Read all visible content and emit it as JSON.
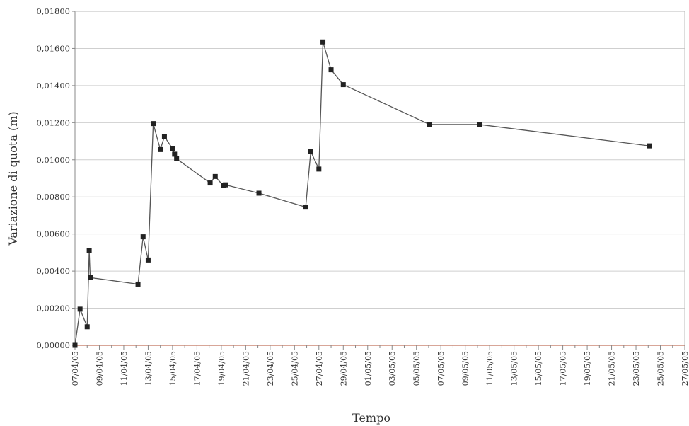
{
  "chart_data": {
    "type": "line",
    "title": "",
    "xlabel": "Tempo",
    "ylabel": "Variazione di quota (m)",
    "xlim": [
      "07/04/05",
      "27/05/05"
    ],
    "ylim": [
      0,
      0.018
    ],
    "grid": "horizontal",
    "legend": "none",
    "y_ticks": [
      "0,00000",
      "0,00200",
      "0,00400",
      "0,00600",
      "0,00800",
      "0,01000",
      "0,01200",
      "0,01400",
      "0,01600",
      "0,01800"
    ],
    "x_ticks": [
      "07/04/05",
      "09/04/05",
      "11/04/05",
      "13/04/05",
      "15/04/05",
      "17/04/05",
      "19/04/05",
      "21/04/05",
      "23/04/05",
      "25/04/05",
      "27/04/05",
      "29/04/05",
      "01/05/05",
      "03/05/05",
      "05/05/05",
      "07/05/05",
      "09/05/05",
      "11/05/05",
      "13/05/05",
      "15/05/05",
      "17/05/05",
      "19/05/05",
      "21/05/05",
      "23/05/05",
      "25/05/05",
      "27/05/05"
    ],
    "series": [
      {
        "color": "#555555",
        "marker": "square",
        "points": [
          {
            "x": "07/04/05",
            "y": 0.0
          },
          {
            "x": "07/04/05 10:00",
            "y": 0.00195
          },
          {
            "x": "08/04/05 00:00",
            "y": 0.001
          },
          {
            "x": "08/04/05 04:00",
            "y": 0.0051
          },
          {
            "x": "08/04/05 06:00",
            "y": 0.00365
          },
          {
            "x": "12/04/05 04:00",
            "y": 0.0033
          },
          {
            "x": "12/04/05 14:00",
            "y": 0.00585
          },
          {
            "x": "13/04/05 00:00",
            "y": 0.0046
          },
          {
            "x": "13/04/05 10:00",
            "y": 0.01195
          },
          {
            "x": "14/04/05 00:00",
            "y": 0.01055
          },
          {
            "x": "14/04/05 08:00",
            "y": 0.01125
          },
          {
            "x": "15/04/05 00:00",
            "y": 0.0106
          },
          {
            "x": "15/04/05 04:00",
            "y": 0.0103
          },
          {
            "x": "15/04/05 08:00",
            "y": 0.01005
          },
          {
            "x": "18/04/05 02:00",
            "y": 0.00875
          },
          {
            "x": "18/04/05 12:00",
            "y": 0.0091
          },
          {
            "x": "19/04/05 04:00",
            "y": 0.0086
          },
          {
            "x": "19/04/05 08:00",
            "y": 0.00865
          },
          {
            "x": "22/04/05 02:00",
            "y": 0.0082
          },
          {
            "x": "25/04/05 22:00",
            "y": 0.00745
          },
          {
            "x": "26/04/05 08:00",
            "y": 0.01045
          },
          {
            "x": "27/04/05 00:00",
            "y": 0.0095
          },
          {
            "x": "27/04/05 08:00",
            "y": 0.01635
          },
          {
            "x": "28/04/05 00:00",
            "y": 0.01485
          },
          {
            "x": "29/04/05 00:00",
            "y": 0.01405
          },
          {
            "x": "06/05/05 02:00",
            "y": 0.0119
          },
          {
            "x": "10/05/05 04:00",
            "y": 0.0119
          },
          {
            "x": "24/05/05 02:00",
            "y": 0.01075
          }
        ]
      }
    ]
  }
}
